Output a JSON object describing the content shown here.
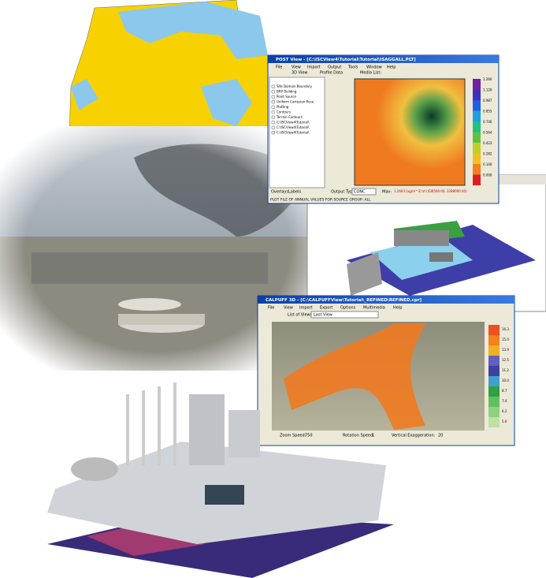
{
  "post_view": {
    "title": "POST View - [C:\\ISCView4\\Tutorial\\Tutorial\\ISAGGALL.PLT]",
    "menu": [
      "File",
      "View",
      "Import",
      "Output",
      "Tools",
      "Window",
      "Help"
    ],
    "toolbar": [
      "3D View",
      "Profile Data",
      "Media List:"
    ],
    "layers": [
      "Site Domain Boundary",
      "BRP Building",
      "Point Source",
      "Uniform Cartesian Rece",
      "Plotting",
      "Contours",
      "Terrain Contours",
      "C:\\ISCView4\\Tutorial\\",
      "C:\\ISCView4\\Tutorial\\",
      "C:\\ISCView4\\Tutorial\\"
    ],
    "tabs": [
      "Overlays",
      "Labels"
    ],
    "output_type_label": "Output Type:",
    "output_type": "CONC",
    "max_label": "Max:",
    "max_value": "1.2603 [ug/m^3] at (436500.00, 3288000.00)",
    "status": "PLOT FILE OF ANNUAL VALUES FOR SOURCE GROUP: ALL",
    "colorbar": [
      "1.260",
      "1.120",
      "0.987",
      "0.855",
      "0.746",
      "0.564",
      "0.423",
      "0.282",
      "0.140",
      "0.000"
    ]
  },
  "calpuff_view": {
    "title": "CALPUFF 3D - [C:\\CALPUFFView\\Tutorial\\_REFINED\\REFINED.cpr]",
    "menu": [
      "File",
      "View",
      "Import",
      "Export",
      "Options",
      "Multimedia",
      "Help"
    ],
    "views_label": "List of Views:",
    "views_value": "Last View",
    "zoom_label": "Zoom Speed:",
    "zoom_value": "750",
    "rotation_label": "Rotation Speed:",
    "rotation_value": "1",
    "exaggeration_label": "Vertical Exaggeration:",
    "exaggeration_value": "20",
    "colorbar": [
      "16.3",
      "15.0",
      "13.9",
      "12.5",
      "11.2",
      "10.0",
      "8.7",
      "7.4",
      "6.2",
      "5.0"
    ]
  }
}
